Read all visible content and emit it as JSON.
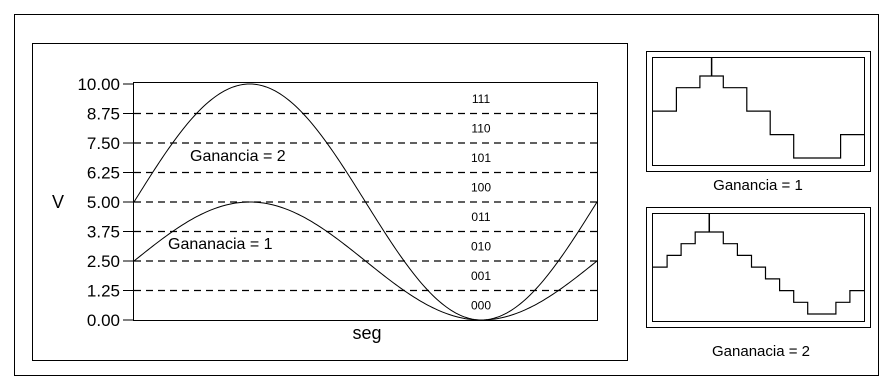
{
  "main_plot": {
    "y_axis_label": "V",
    "x_axis_label": "seg",
    "y_ticks": [
      "10.00",
      "8.75",
      "7.50",
      "6.25",
      "5.00",
      "3.75",
      "2.50",
      "1.25",
      "0.00"
    ],
    "code_labels": [
      "111",
      "110",
      "101",
      "100",
      "011",
      "010",
      "001",
      "000"
    ],
    "curve_labels": {
      "gain_2": "Ganancia = 2",
      "gain_1": "Gananacia = 1"
    }
  },
  "chart_data": {
    "type": "line",
    "xlabel": "seg",
    "ylabel": "V",
    "ylim": [
      0,
      10
    ],
    "grid": "horizontal dashed at each tick",
    "series": [
      {
        "name": "Ganancia = 2",
        "shape": "sine",
        "offset": 5.0,
        "amplitude": 5.0,
        "peak_at_fraction": 0.25,
        "trough_at_fraction": 0.75,
        "start_value": 5.0,
        "end_value": 5.0
      },
      {
        "name": "Gananacia = 1",
        "shape": "sine",
        "offset": 2.5,
        "amplitude": 2.5,
        "peak_at_fraction": 0.25,
        "trough_at_fraction": 0.75,
        "start_value": 2.5,
        "end_value": 2.5
      }
    ]
  },
  "panels": {
    "top_right": {
      "caption": "Ganancia = 1",
      "step_levels": [
        4,
        6,
        7,
        6,
        4,
        2,
        0,
        0,
        2
      ]
    },
    "bottom_right": {
      "caption": "Gananacia = 2",
      "step_levels": [
        4,
        5,
        6,
        7,
        7,
        6,
        5,
        4,
        3,
        2,
        1,
        0,
        0,
        1,
        2
      ]
    }
  }
}
